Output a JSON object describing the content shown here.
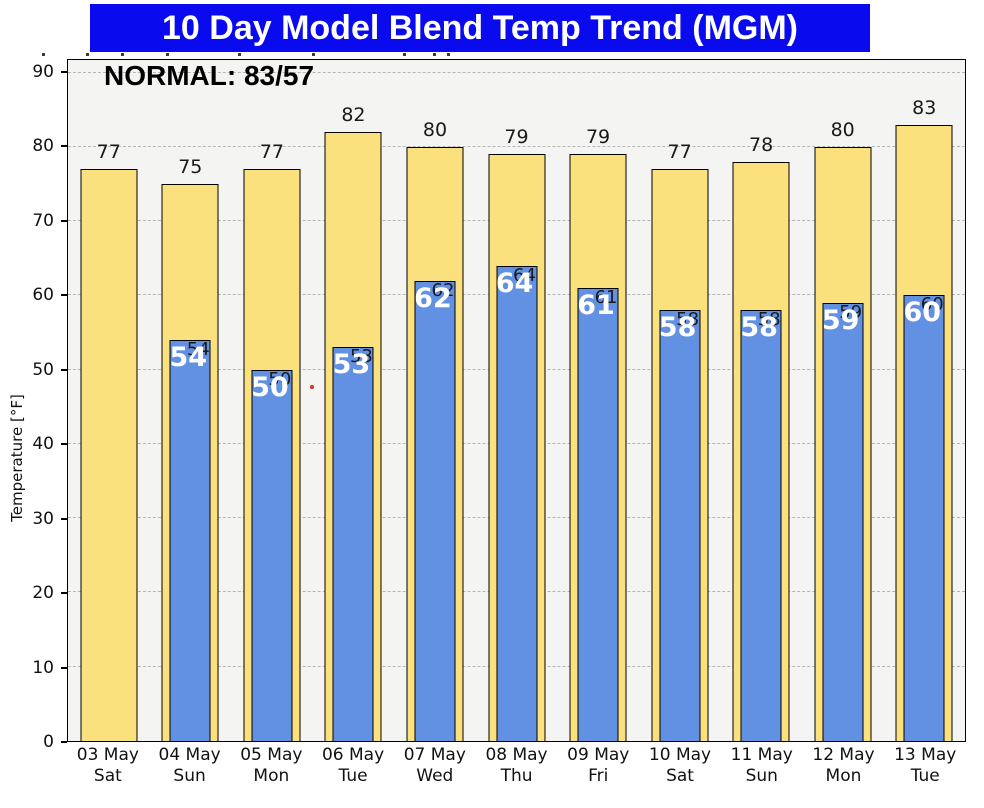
{
  "banner": {
    "title": "10 Day Model Blend Temp Trend (MGM)",
    "background": "#0a0aee",
    "text_color": "#ffffff"
  },
  "annotation": {
    "normal_label": "NORMAL: 83/57"
  },
  "axis": {
    "y_title": "Temperature [°F]",
    "y_ticks": [
      0,
      10,
      20,
      30,
      40,
      50,
      60,
      70,
      80,
      90
    ]
  },
  "chart_data": {
    "type": "bar",
    "title": "10 Day Model Blend Temp Trend (MGM)",
    "xlabel": "",
    "ylabel": "Temperature [°F]",
    "ylim": [
      0,
      91.7
    ],
    "grid": true,
    "categories": [
      {
        "date": "03 May",
        "day": "Sat"
      },
      {
        "date": "04 May",
        "day": "Sun"
      },
      {
        "date": "05 May",
        "day": "Mon"
      },
      {
        "date": "06 May",
        "day": "Tue"
      },
      {
        "date": "07 May",
        "day": "Wed"
      },
      {
        "date": "08 May",
        "day": "Thu"
      },
      {
        "date": "09 May",
        "day": "Fri"
      },
      {
        "date": "10 May",
        "day": "Sat"
      },
      {
        "date": "11 May",
        "day": "Sun"
      },
      {
        "date": "12 May",
        "day": "Mon"
      },
      {
        "date": "13 May",
        "day": "Tue"
      }
    ],
    "series": [
      {
        "name": "High",
        "color": "#fbe17d",
        "values": [
          77,
          75,
          77,
          82,
          80,
          79,
          79,
          77,
          78,
          80,
          83
        ]
      },
      {
        "name": "Low",
        "color": "#6290e2",
        "values": [
          null,
          54,
          50,
          53,
          62,
          64,
          61,
          58,
          58,
          59,
          60
        ]
      }
    ],
    "normal": {
      "high": 83,
      "low": 57
    }
  }
}
